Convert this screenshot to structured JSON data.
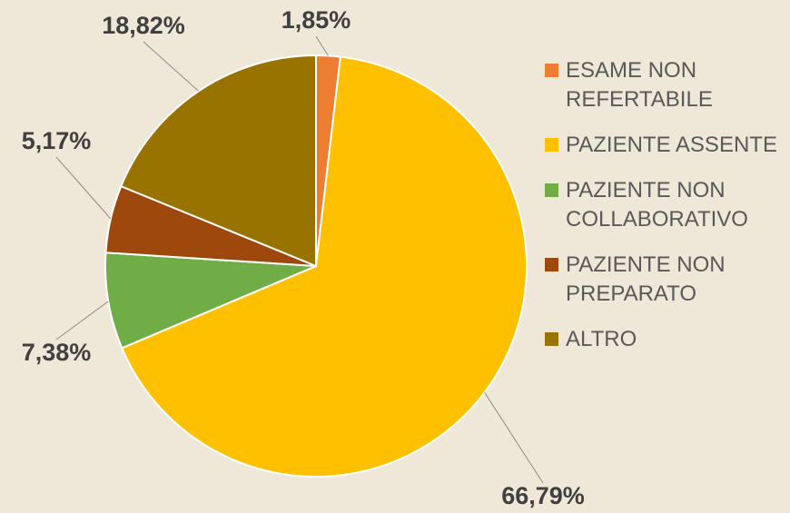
{
  "chart_data": {
    "type": "pie",
    "categories": [
      "ESAME NON REFERTABILE",
      "PAZIENTE ASSENTE",
      "PAZIENTE NON COLLABORATIVO",
      "PAZIENTE NON PREPARATO",
      "ALTRO"
    ],
    "values": [
      1.85,
      66.79,
      7.38,
      5.17,
      18.82
    ],
    "value_labels": [
      "1,85%",
      "66,79%",
      "7,38%",
      "5,17%",
      "18,82%"
    ],
    "colors": [
      "#ed7d31",
      "#ffc000",
      "#70ad47",
      "#9e480e",
      "#997300"
    ],
    "legend": "right"
  }
}
